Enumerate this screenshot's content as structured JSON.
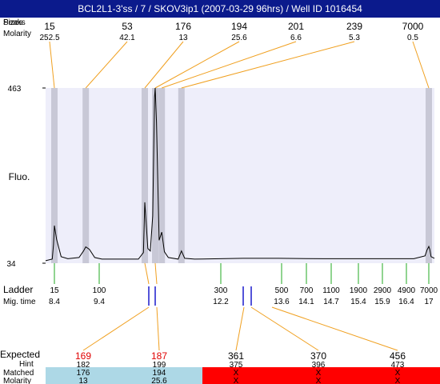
{
  "title": "BCL2L1-3'ss / 7 / SKOV3ip1 (2007-03-29 96hrs) / Well ID 1016454",
  "row_labels": {
    "sizes_overlap_1": "Sizes",
    "sizes_overlap_2": "Peaks",
    "molarity": "Molarity",
    "fluo": "Fluo.",
    "ladder": "Ladder",
    "mig_time": "Mig. time",
    "expected": "Expected",
    "hint": "Hint",
    "matched": "Matched",
    "molarity_bottom": "Molarity"
  },
  "colors": {
    "title_bg": "#0b1a8c",
    "plot_bg": "#eeeefa",
    "peak_band": "#c8c8d6",
    "connector": "#f0a020",
    "ladder_tick": "#22aa22",
    "hit_marker": "#1a1acc",
    "expected_red": "#e00000",
    "matched_ok": "#add8e6",
    "matched_bad": "#ff0000"
  },
  "chart_data": {
    "type": "line",
    "ylim": [
      34,
      463
    ],
    "yticks": [
      "463",
      "34"
    ],
    "ylabel": "Fluo.",
    "xlim_migration": [
      8.0,
      17.3
    ],
    "top_peaks": [
      {
        "size": "15",
        "molarity": "252.5",
        "time": 8.4
      },
      {
        "size": "53",
        "molarity": "42.1",
        "time": 9.1
      },
      {
        "size": "176",
        "molarity": "13",
        "time": 11.03
      },
      {
        "size": "194",
        "molarity": "25.6",
        "time": 11.2
      },
      {
        "size": "201",
        "molarity": "6.6",
        "time": 11.3
      },
      {
        "size": "239",
        "molarity": "5.3",
        "time": 11.6
      },
      {
        "size": "7000",
        "molarity": "0.5",
        "time": 17.0
      }
    ],
    "ladder": [
      {
        "size": "15",
        "time": "8.4"
      },
      {
        "size": "100",
        "time": "9.4"
      },
      {
        "size": "300",
        "time": "12.2"
      },
      {
        "size": "500",
        "time": "13.6"
      },
      {
        "size": "700",
        "time": "14.1"
      },
      {
        "size": "1100",
        "time": "14.7"
      },
      {
        "size": "1900",
        "time": "15.4"
      },
      {
        "size": "2900",
        "time": "15.9"
      },
      {
        "size": "4900",
        "time": "16.4"
      },
      {
        "size": "7000",
        "time": "17"
      }
    ],
    "trace": [
      [
        8.0,
        40
      ],
      [
        8.3,
        44
      ],
      [
        8.36,
        80
      ],
      [
        8.4,
        126
      ],
      [
        8.45,
        92
      ],
      [
        8.55,
        50
      ],
      [
        8.7,
        45
      ],
      [
        8.95,
        48
      ],
      [
        9.05,
        64
      ],
      [
        9.1,
        74
      ],
      [
        9.18,
        68
      ],
      [
        9.3,
        48
      ],
      [
        9.5,
        44
      ],
      [
        10.2,
        44
      ],
      [
        10.8,
        44
      ],
      [
        10.98,
        60
      ],
      [
        11.03,
        183
      ],
      [
        11.08,
        70
      ],
      [
        11.12,
        64
      ],
      [
        11.16,
        150
      ],
      [
        11.19,
        440
      ],
      [
        11.2,
        463
      ],
      [
        11.22,
        380
      ],
      [
        11.26,
        90
      ],
      [
        11.3,
        110
      ],
      [
        11.34,
        62
      ],
      [
        11.4,
        48
      ],
      [
        11.55,
        44
      ],
      [
        11.6,
        64
      ],
      [
        11.65,
        46
      ],
      [
        11.8,
        44
      ],
      [
        12.5,
        46
      ],
      [
        13.5,
        46
      ],
      [
        14.5,
        45
      ],
      [
        15.5,
        45
      ],
      [
        16.6,
        45
      ],
      [
        16.9,
        52
      ],
      [
        16.95,
        66
      ],
      [
        17.0,
        75
      ],
      [
        17.05,
        68
      ],
      [
        17.12,
        50
      ],
      [
        17.3,
        46
      ]
    ],
    "ladder_hits": [
      11.03,
      11.2,
      12.5,
      12.65
    ],
    "expected": [
      {
        "expected": "169",
        "hint": "182",
        "matched": "176",
        "molarity": "13",
        "status": "ok"
      },
      {
        "expected": "187",
        "hint": "199",
        "matched": "194",
        "molarity": "25.6",
        "status": "ok"
      },
      {
        "expected": "361",
        "hint": "375",
        "matched": "X",
        "molarity": "X",
        "status": "missing"
      },
      {
        "expected": "370",
        "hint": "396",
        "matched": "X",
        "molarity": "X",
        "status": "missing"
      },
      {
        "expected": "456",
        "hint": "473",
        "matched": "X",
        "molarity": "X",
        "status": "missing"
      }
    ]
  }
}
